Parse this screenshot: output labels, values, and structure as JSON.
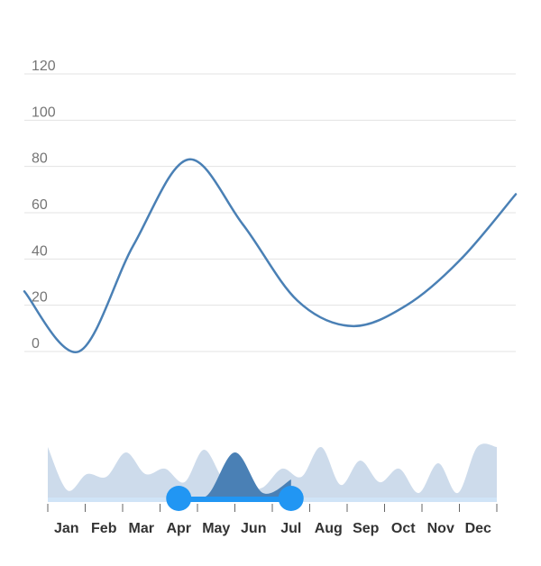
{
  "colors": {
    "line": "#4a80b5",
    "grid": "#e3e3e3",
    "tick_text": "#757575",
    "navigator_area": "#cddbeb",
    "navigator_area_selected": "#4a80b5",
    "navigator_track": "#d0e4f7",
    "slider": "#2196f3",
    "month_text": "#333333",
    "axis_ticks": "#666666"
  },
  "chart_data": {
    "type": "line",
    "title": "",
    "xlabel": "",
    "ylabel": "",
    "ylim": [
      0,
      120
    ],
    "yticks": [
      "120",
      "100",
      "80",
      "60",
      "40",
      "20",
      "0"
    ],
    "grid": true,
    "legend": "none",
    "series": [
      {
        "values": [
          26,
          0,
          46,
          83,
          55,
          22,
          11,
          20,
          40,
          68
        ]
      }
    ],
    "navigator": {
      "months": [
        "Jan",
        "Feb",
        "Mar",
        "Apr",
        "May",
        "Jun",
        "Jul",
        "Aug",
        "Sep",
        "Oct",
        "Nov",
        "Dec"
      ],
      "selection": [
        "Apr",
        "Jul"
      ]
    }
  }
}
